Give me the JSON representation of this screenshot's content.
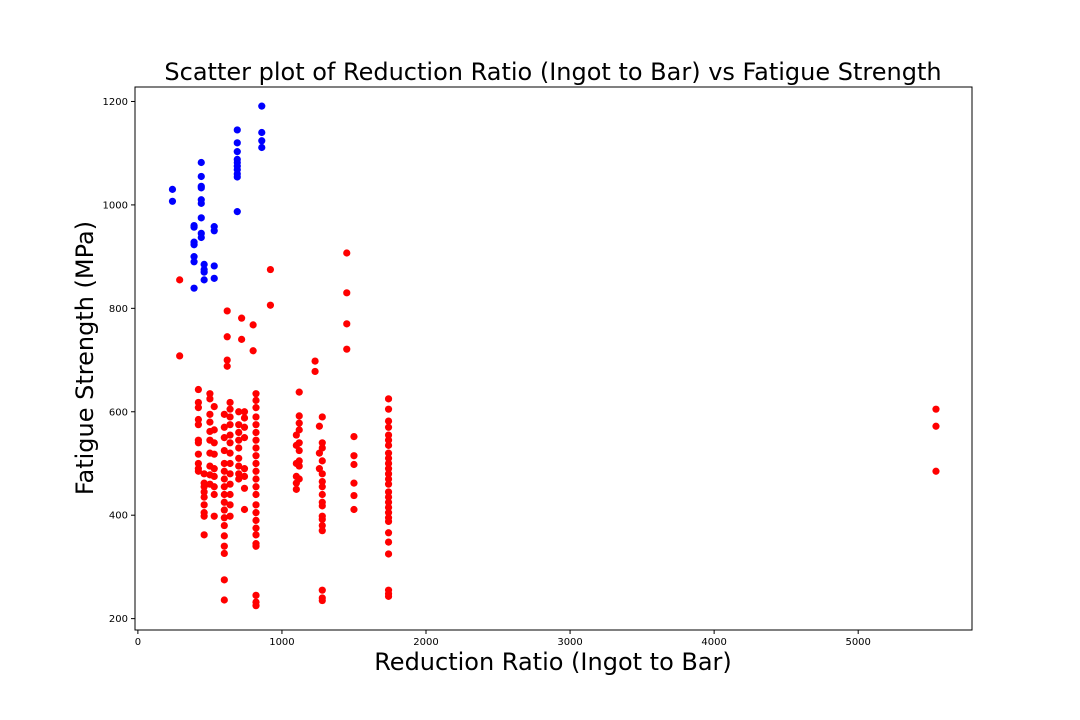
{
  "chart_data": {
    "type": "scatter",
    "title": "Scatter plot of Reduction Ratio (Ingot to Bar) vs Fatigue Strength",
    "xlabel": "Reduction Ratio (Ingot to Bar)",
    "ylabel": "Fatigue Strength (MPa)",
    "xlim": [
      -20,
      5790
    ],
    "ylim": [
      178,
      1228
    ],
    "xticks": [
      0,
      1000,
      2000,
      3000,
      4000,
      5000
    ],
    "yticks": [
      200,
      400,
      600,
      800,
      1000,
      1200
    ],
    "grid": false,
    "legend": "none",
    "colors": {
      "blue": "#0000ff",
      "red": "#ff0000"
    },
    "series": [
      {
        "color": "#0000ff",
        "points": [
          [
            240,
            1030
          ],
          [
            240,
            1007
          ],
          [
            390,
            960
          ],
          [
            390,
            957
          ],
          [
            390,
            928
          ],
          [
            390,
            923
          ],
          [
            390,
            900
          ],
          [
            390,
            890
          ],
          [
            390,
            839
          ],
          [
            440,
            1082
          ],
          [
            440,
            1055
          ],
          [
            440,
            1036
          ],
          [
            440,
            1033
          ],
          [
            440,
            1010
          ],
          [
            440,
            1003
          ],
          [
            440,
            975
          ],
          [
            440,
            945
          ],
          [
            440,
            937
          ],
          [
            460,
            885
          ],
          [
            460,
            875
          ],
          [
            460,
            870
          ],
          [
            460,
            855
          ],
          [
            530,
            958
          ],
          [
            530,
            950
          ],
          [
            530,
            882
          ],
          [
            530,
            858
          ],
          [
            690,
            1145
          ],
          [
            690,
            1120
          ],
          [
            690,
            1103
          ],
          [
            690,
            1088
          ],
          [
            690,
            1082
          ],
          [
            690,
            1075
          ],
          [
            690,
            1068
          ],
          [
            690,
            1060
          ],
          [
            690,
            1054
          ],
          [
            690,
            987
          ],
          [
            860,
            1191
          ],
          [
            860,
            1140
          ],
          [
            860,
            1124
          ],
          [
            860,
            1111
          ]
        ]
      },
      {
        "color": "#ff0000",
        "points": [
          [
            290,
            855
          ],
          [
            290,
            708
          ],
          [
            920,
            875
          ],
          [
            920,
            806
          ],
          [
            1450,
            907
          ],
          [
            1450,
            830
          ],
          [
            1450,
            770
          ],
          [
            1450,
            721
          ],
          [
            620,
            795
          ],
          [
            620,
            745
          ],
          [
            620,
            700
          ],
          [
            620,
            688
          ],
          [
            720,
            781
          ],
          [
            720,
            740
          ],
          [
            800,
            768
          ],
          [
            800,
            718
          ],
          [
            1230,
            698
          ],
          [
            1230,
            678
          ],
          [
            420,
            643
          ],
          [
            420,
            618
          ],
          [
            420,
            608
          ],
          [
            420,
            585
          ],
          [
            420,
            575
          ],
          [
            420,
            545
          ],
          [
            420,
            540
          ],
          [
            420,
            518
          ],
          [
            420,
            500
          ],
          [
            420,
            490
          ],
          [
            420,
            485
          ],
          [
            460,
            480
          ],
          [
            460,
            462
          ],
          [
            460,
            455
          ],
          [
            460,
            445
          ],
          [
            460,
            435
          ],
          [
            460,
            420
          ],
          [
            460,
            405
          ],
          [
            460,
            398
          ],
          [
            460,
            362
          ],
          [
            500,
            635
          ],
          [
            500,
            625
          ],
          [
            500,
            595
          ],
          [
            500,
            580
          ],
          [
            500,
            562
          ],
          [
            500,
            545
          ],
          [
            500,
            520
          ],
          [
            500,
            495
          ],
          [
            500,
            478
          ],
          [
            500,
            460
          ],
          [
            530,
            610
          ],
          [
            530,
            565
          ],
          [
            530,
            540
          ],
          [
            530,
            518
          ],
          [
            530,
            490
          ],
          [
            530,
            475
          ],
          [
            530,
            455
          ],
          [
            530,
            440
          ],
          [
            530,
            398
          ],
          [
            600,
            595
          ],
          [
            600,
            570
          ],
          [
            600,
            550
          ],
          [
            600,
            525
          ],
          [
            600,
            500
          ],
          [
            600,
            485
          ],
          [
            600,
            470
          ],
          [
            600,
            455
          ],
          [
            600,
            440
          ],
          [
            600,
            425
          ],
          [
            600,
            410
          ],
          [
            600,
            395
          ],
          [
            600,
            380
          ],
          [
            600,
            360
          ],
          [
            600,
            340
          ],
          [
            600,
            326
          ],
          [
            600,
            275
          ],
          [
            600,
            236
          ],
          [
            640,
            618
          ],
          [
            640,
            605
          ],
          [
            640,
            590
          ],
          [
            640,
            575
          ],
          [
            640,
            555
          ],
          [
            640,
            540
          ],
          [
            640,
            520
          ],
          [
            640,
            500
          ],
          [
            640,
            480
          ],
          [
            640,
            460
          ],
          [
            640,
            440
          ],
          [
            640,
            420
          ],
          [
            640,
            398
          ],
          [
            700,
            600
          ],
          [
            700,
            575
          ],
          [
            700,
            560
          ],
          [
            700,
            545
          ],
          [
            700,
            530
          ],
          [
            700,
            510
          ],
          [
            700,
            495
          ],
          [
            700,
            480
          ],
          [
            700,
            470
          ],
          [
            740,
            600
          ],
          [
            740,
            588
          ],
          [
            740,
            570
          ],
          [
            740,
            550
          ],
          [
            740,
            490
          ],
          [
            740,
            475
          ],
          [
            740,
            452
          ],
          [
            740,
            411
          ],
          [
            820,
            635
          ],
          [
            820,
            622
          ],
          [
            820,
            608
          ],
          [
            820,
            590
          ],
          [
            820,
            575
          ],
          [
            820,
            560
          ],
          [
            820,
            545
          ],
          [
            820,
            530
          ],
          [
            820,
            515
          ],
          [
            820,
            500
          ],
          [
            820,
            485
          ],
          [
            820,
            470
          ],
          [
            820,
            455
          ],
          [
            820,
            440
          ],
          [
            820,
            420
          ],
          [
            820,
            405
          ],
          [
            820,
            390
          ],
          [
            820,
            375
          ],
          [
            820,
            362
          ],
          [
            820,
            345
          ],
          [
            820,
            340
          ],
          [
            820,
            245
          ],
          [
            820,
            232
          ],
          [
            820,
            225
          ],
          [
            1100,
            555
          ],
          [
            1100,
            535
          ],
          [
            1100,
            500
          ],
          [
            1100,
            475
          ],
          [
            1100,
            462
          ],
          [
            1100,
            450
          ],
          [
            1120,
            638
          ],
          [
            1120,
            592
          ],
          [
            1120,
            578
          ],
          [
            1120,
            565
          ],
          [
            1120,
            540
          ],
          [
            1120,
            525
          ],
          [
            1120,
            505
          ],
          [
            1120,
            495
          ],
          [
            1120,
            470
          ],
          [
            1260,
            572
          ],
          [
            1260,
            520
          ],
          [
            1260,
            490
          ],
          [
            1280,
            590
          ],
          [
            1280,
            540
          ],
          [
            1280,
            530
          ],
          [
            1280,
            505
          ],
          [
            1280,
            480
          ],
          [
            1280,
            465
          ],
          [
            1280,
            455
          ],
          [
            1280,
            440
          ],
          [
            1280,
            425
          ],
          [
            1280,
            418
          ],
          [
            1280,
            398
          ],
          [
            1280,
            392
          ],
          [
            1280,
            380
          ],
          [
            1280,
            370
          ],
          [
            1280,
            255
          ],
          [
            1280,
            240
          ],
          [
            1280,
            235
          ],
          [
            1500,
            552
          ],
          [
            1500,
            515
          ],
          [
            1500,
            498
          ],
          [
            1500,
            462
          ],
          [
            1500,
            438
          ],
          [
            1500,
            411
          ],
          [
            1740,
            625
          ],
          [
            1740,
            605
          ],
          [
            1740,
            582
          ],
          [
            1740,
            570
          ],
          [
            1740,
            555
          ],
          [
            1740,
            545
          ],
          [
            1740,
            535
          ],
          [
            1740,
            520
          ],
          [
            1740,
            510
          ],
          [
            1740,
            500
          ],
          [
            1740,
            490
          ],
          [
            1740,
            480
          ],
          [
            1740,
            470
          ],
          [
            1740,
            460
          ],
          [
            1740,
            445
          ],
          [
            1740,
            435
          ],
          [
            1740,
            425
          ],
          [
            1740,
            415
          ],
          [
            1740,
            405
          ],
          [
            1740,
            395
          ],
          [
            1740,
            388
          ],
          [
            1740,
            366
          ],
          [
            1740,
            348
          ],
          [
            1740,
            325
          ],
          [
            1740,
            255
          ],
          [
            1740,
            248
          ],
          [
            1740,
            243
          ],
          [
            5540,
            605
          ],
          [
            5540,
            572
          ],
          [
            5540,
            485
          ]
        ]
      }
    ]
  }
}
